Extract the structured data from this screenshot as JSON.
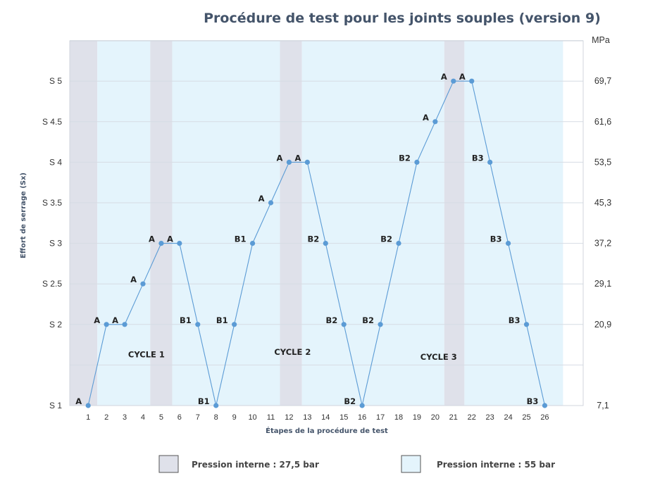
{
  "chart_data": {
    "type": "line",
    "title": "Procédure de test pour les joints souples (version 9)",
    "xlabel": "Étapes de la procédure de test",
    "ylabel": "Effort de serrage (Sx)",
    "right_unit": "MPa",
    "x_categories": [
      "1",
      "2",
      "3",
      "4",
      "5",
      "6",
      "7",
      "8",
      "9",
      "10",
      "11",
      "12",
      "13",
      "14",
      "15",
      "16",
      "17",
      "18",
      "19",
      "20",
      "21",
      "22",
      "23",
      "24",
      "25",
      "26"
    ],
    "y_ticks": [
      {
        "value": 1,
        "label": "S 1"
      },
      {
        "value": 2,
        "label": "S 2"
      },
      {
        "value": 2.5,
        "label": "S 2.5"
      },
      {
        "value": 3,
        "label": "S 3"
      },
      {
        "value": 3.5,
        "label": "S 3.5"
      },
      {
        "value": 4,
        "label": "S 4"
      },
      {
        "value": 4.5,
        "label": "S 4.5"
      },
      {
        "value": 5,
        "label": "S 5"
      }
    ],
    "right_ticks": [
      {
        "value": 1,
        "label": "7,1"
      },
      {
        "value": 2,
        "label": "20,9"
      },
      {
        "value": 2.5,
        "label": "29,1"
      },
      {
        "value": 3,
        "label": "37,2"
      },
      {
        "value": 3.5,
        "label": "45,3"
      },
      {
        "value": 4,
        "label": "53,5"
      },
      {
        "value": 4.5,
        "label": "61,6"
      },
      {
        "value": 5,
        "label": "69,7"
      }
    ],
    "extra_gridlines": [
      1.5,
      5.5
    ],
    "ylim": [
      1,
      5.5
    ],
    "series": [
      {
        "x": [
          1,
          2,
          3,
          4,
          5,
          6,
          7,
          8,
          9,
          10,
          11,
          12,
          13,
          14,
          15,
          16,
          17,
          18,
          19,
          20,
          21,
          22,
          23,
          24,
          25,
          26
        ],
        "values": [
          1,
          2,
          2,
          2.5,
          3,
          3,
          2,
          1,
          2,
          3,
          3.5,
          4,
          4,
          3,
          2,
          1,
          2,
          3,
          4,
          4.5,
          5,
          5,
          4,
          3,
          2,
          1
        ],
        "labels": [
          "A",
          "A",
          "A",
          "A",
          "A",
          "A",
          "B1",
          "B1",
          "B1",
          "B1",
          "A",
          "A",
          "A",
          "B2",
          "B2",
          "B2",
          "B2",
          "B2",
          "B2",
          "A",
          "A",
          "A",
          "B3",
          "B3",
          "B3",
          "B3"
        ],
        "color": "#5b9bd5"
      }
    ],
    "cycles": [
      {
        "label": "CYCLE 1",
        "x": 5,
        "y": 1.63
      },
      {
        "label": "CYCLE 2",
        "x": 13,
        "y": 1.66
      },
      {
        "label": "CYCLE 3",
        "x": 21,
        "y": 1.6
      }
    ],
    "pressure_bands": [
      {
        "from": 0,
        "to": 1.5,
        "type": "low"
      },
      {
        "from": 1.5,
        "to": 4.4,
        "type": "high"
      },
      {
        "from": 4.4,
        "to": 5.6,
        "type": "low"
      },
      {
        "from": 5.6,
        "to": 11.5,
        "type": "high"
      },
      {
        "from": 11.5,
        "to": 12.7,
        "type": "low"
      },
      {
        "from": 12.7,
        "to": 20.5,
        "type": "high"
      },
      {
        "from": 20.5,
        "to": 21.6,
        "type": "low"
      },
      {
        "from": 21.6,
        "to": 27.0,
        "type": "high"
      }
    ],
    "legend": [
      {
        "label": "Pression interne : 27,5 bar",
        "type": "low",
        "color": "#dfe1ea"
      },
      {
        "label": "Pression interne :  55 bar",
        "type": "high",
        "color": "#e4f4fc"
      }
    ],
    "colors": {
      "low": "#dfe1ea",
      "high": "#e4f4fc",
      "line": "#5b9bd5",
      "grid": "#d6dce4"
    }
  }
}
